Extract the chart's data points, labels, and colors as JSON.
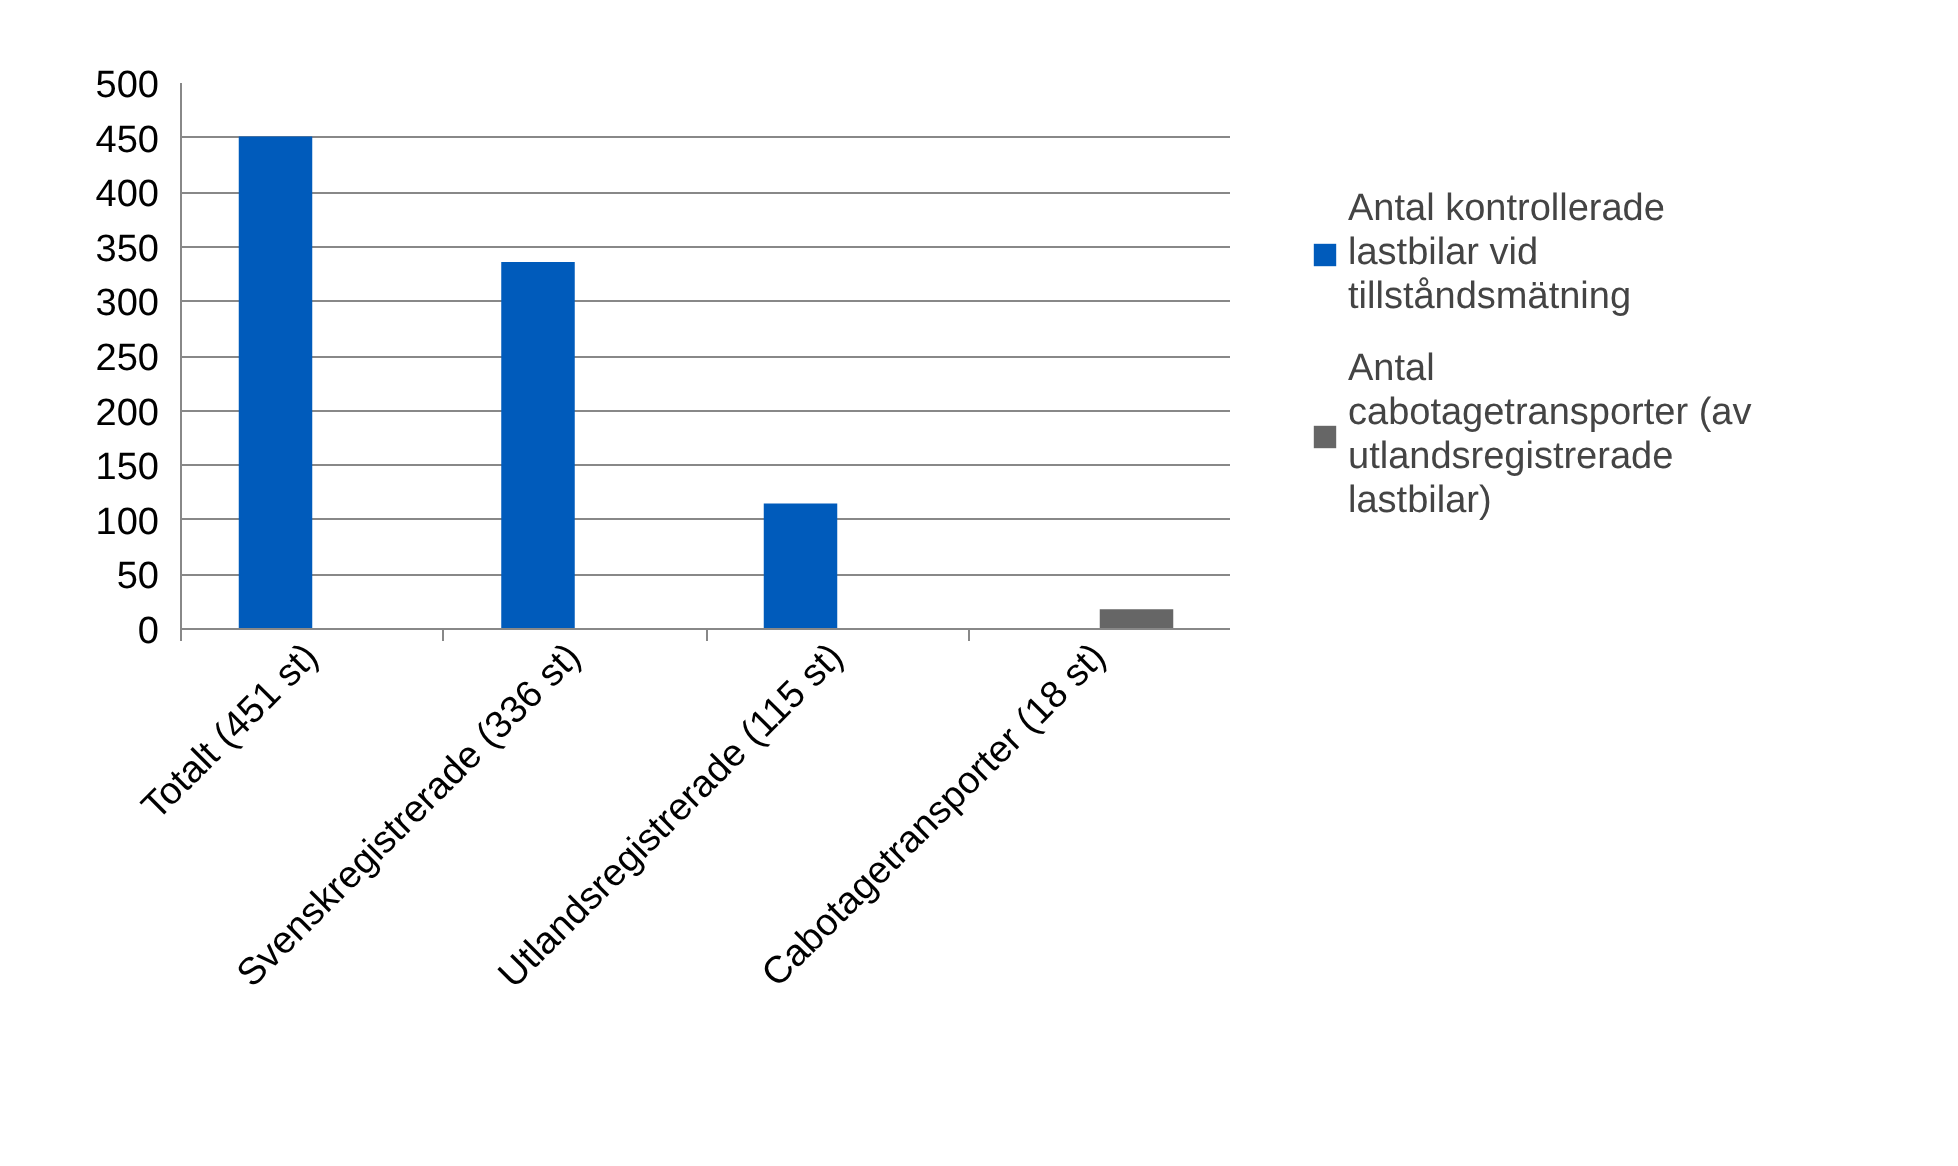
{
  "chart_data": {
    "type": "bar",
    "categories": [
      "Totalt (451 st)",
      "Svenskregistrerade (336 st)",
      "Utlandsregistrerade (115 st)",
      "Cabotagetransporter (18 st)"
    ],
    "series": [
      {
        "name": "Antal kontrollerade lastbilar vid tillståndsmätning",
        "color": "#005bbb",
        "values": [
          451,
          336,
          115,
          null
        ]
      },
      {
        "name": "Antal cabotagetransporter (av utlandsregistrerade lastbilar)",
        "color": "#666666",
        "values": [
          null,
          null,
          null,
          18
        ]
      }
    ],
    "ylim": [
      0,
      500
    ],
    "yticks": [
      0,
      50,
      100,
      150,
      200,
      250,
      300,
      350,
      400,
      450,
      500
    ],
    "grid": "y",
    "legend": "right"
  }
}
